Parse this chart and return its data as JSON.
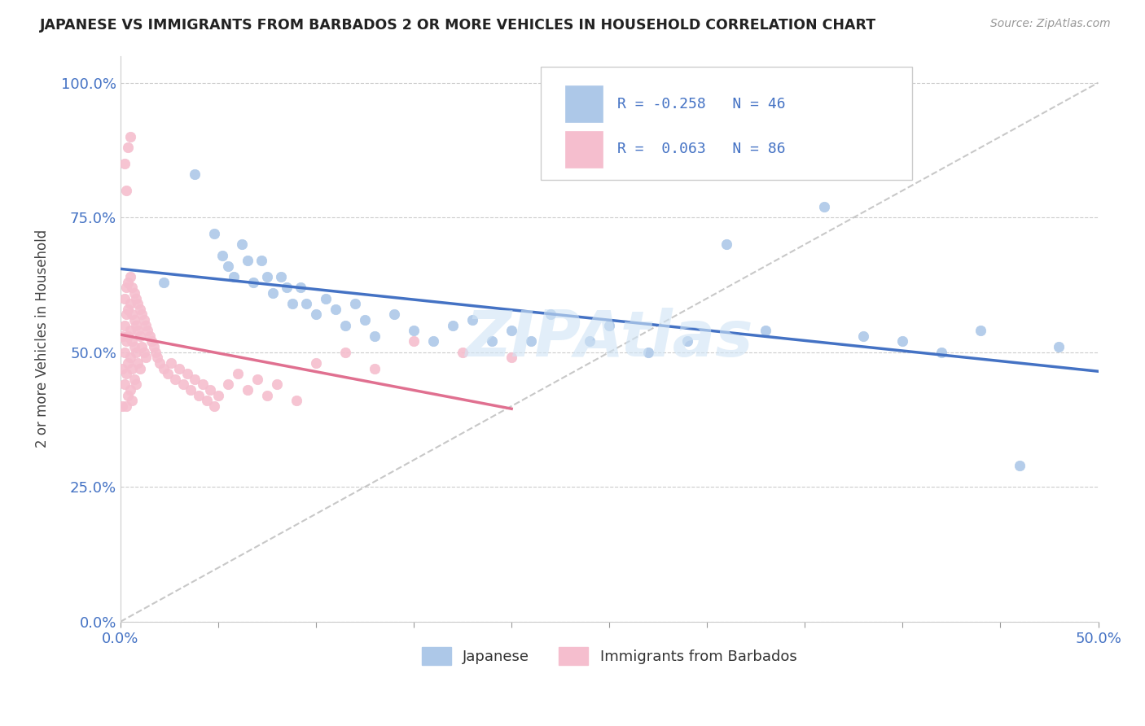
{
  "title": "JAPANESE VS IMMIGRANTS FROM BARBADOS 2 OR MORE VEHICLES IN HOUSEHOLD CORRELATION CHART",
  "source": "Source: ZipAtlas.com",
  "xlim": [
    0.0,
    0.5
  ],
  "ylim": [
    0.0,
    1.05
  ],
  "ylabel": "2 or more Vehicles in Household",
  "legend_labels": [
    "Japanese",
    "Immigrants from Barbados"
  ],
  "legend_R": [
    -0.258,
    0.063
  ],
  "legend_N": [
    46,
    86
  ],
  "blue_color": "#adc8e8",
  "pink_color": "#f5bece",
  "blue_line_color": "#4472c4",
  "pink_line_color": "#e07090",
  "japanese_x": [
    0.022,
    0.038,
    0.048,
    0.052,
    0.055,
    0.058,
    0.062,
    0.065,
    0.068,
    0.072,
    0.075,
    0.078,
    0.082,
    0.085,
    0.088,
    0.092,
    0.095,
    0.1,
    0.105,
    0.11,
    0.115,
    0.12,
    0.125,
    0.13,
    0.14,
    0.15,
    0.16,
    0.17,
    0.18,
    0.19,
    0.2,
    0.21,
    0.22,
    0.24,
    0.25,
    0.27,
    0.29,
    0.31,
    0.33,
    0.36,
    0.38,
    0.4,
    0.42,
    0.44,
    0.46,
    0.48
  ],
  "japanese_y": [
    0.63,
    0.83,
    0.72,
    0.68,
    0.66,
    0.64,
    0.7,
    0.67,
    0.63,
    0.67,
    0.64,
    0.61,
    0.64,
    0.62,
    0.59,
    0.62,
    0.59,
    0.57,
    0.6,
    0.58,
    0.55,
    0.59,
    0.56,
    0.53,
    0.57,
    0.54,
    0.52,
    0.55,
    0.56,
    0.52,
    0.54,
    0.52,
    0.57,
    0.52,
    0.55,
    0.5,
    0.52,
    0.7,
    0.54,
    0.77,
    0.53,
    0.52,
    0.5,
    0.54,
    0.29,
    0.51
  ],
  "barbados_x": [
    0.001,
    0.001,
    0.001,
    0.002,
    0.002,
    0.002,
    0.002,
    0.003,
    0.003,
    0.003,
    0.003,
    0.003,
    0.004,
    0.004,
    0.004,
    0.004,
    0.004,
    0.005,
    0.005,
    0.005,
    0.005,
    0.005,
    0.006,
    0.006,
    0.006,
    0.006,
    0.006,
    0.007,
    0.007,
    0.007,
    0.007,
    0.008,
    0.008,
    0.008,
    0.008,
    0.009,
    0.009,
    0.009,
    0.01,
    0.01,
    0.01,
    0.011,
    0.011,
    0.012,
    0.012,
    0.013,
    0.013,
    0.014,
    0.015,
    0.016,
    0.017,
    0.018,
    0.019,
    0.02,
    0.022,
    0.024,
    0.026,
    0.028,
    0.03,
    0.032,
    0.034,
    0.036,
    0.038,
    0.04,
    0.042,
    0.044,
    0.046,
    0.048,
    0.05,
    0.055,
    0.06,
    0.065,
    0.07,
    0.075,
    0.08,
    0.09,
    0.1,
    0.115,
    0.13,
    0.15,
    0.175,
    0.2,
    0.002,
    0.003,
    0.004,
    0.005
  ],
  "barbados_y": [
    0.53,
    0.47,
    0.4,
    0.6,
    0.55,
    0.5,
    0.44,
    0.62,
    0.57,
    0.52,
    0.46,
    0.4,
    0.63,
    0.58,
    0.53,
    0.48,
    0.42,
    0.64,
    0.59,
    0.54,
    0.49,
    0.43,
    0.62,
    0.57,
    0.52,
    0.47,
    0.41,
    0.61,
    0.56,
    0.51,
    0.45,
    0.6,
    0.55,
    0.5,
    0.44,
    0.59,
    0.54,
    0.48,
    0.58,
    0.53,
    0.47,
    0.57,
    0.51,
    0.56,
    0.5,
    0.55,
    0.49,
    0.54,
    0.53,
    0.52,
    0.51,
    0.5,
    0.49,
    0.48,
    0.47,
    0.46,
    0.48,
    0.45,
    0.47,
    0.44,
    0.46,
    0.43,
    0.45,
    0.42,
    0.44,
    0.41,
    0.43,
    0.4,
    0.42,
    0.44,
    0.46,
    0.43,
    0.45,
    0.42,
    0.44,
    0.41,
    0.48,
    0.5,
    0.47,
    0.52,
    0.5,
    0.49,
    0.85,
    0.8,
    0.88,
    0.9
  ]
}
